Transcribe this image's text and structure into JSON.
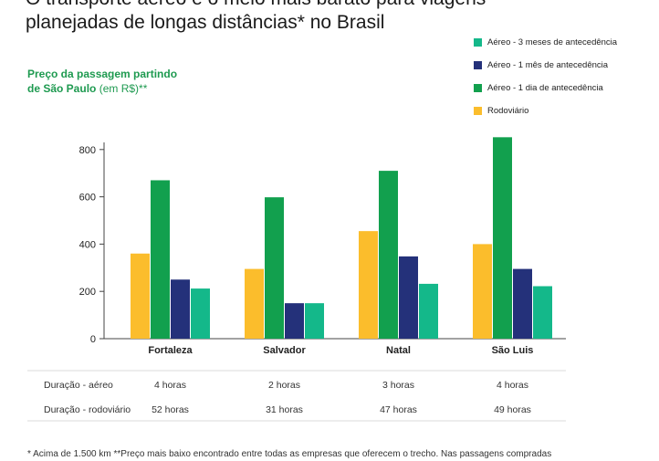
{
  "headline": {
    "line1": "O transporte aéreo é o meio mais barato para viagens",
    "line2": "planejadas de longas distâncias* no Brasil"
  },
  "subtitle": {
    "line1": "Preço da passagem partindo",
    "line2": "de São Paulo",
    "unit": " (em R$)**"
  },
  "legend": [
    {
      "label": "Aéreo - 3 meses de antecedência",
      "color": "#14b88a"
    },
    {
      "label": "Aéreo - 1 mês de antecedência",
      "color": "#24317a"
    },
    {
      "label": "Aéreo - 1 dia de antecedência",
      "color": "#12a04e"
    },
    {
      "label": "Rodoviário",
      "color": "#fbbd2c"
    }
  ],
  "chart_data": {
    "type": "bar",
    "title": "Preço da passagem partindo de São Paulo",
    "ylabel": "",
    "xlabel": "",
    "ylim": [
      0,
      850
    ],
    "yticks": [
      0,
      200,
      400,
      600,
      800
    ],
    "categories": [
      "Fortaleza",
      "Salvador",
      "Natal",
      "São Luis"
    ],
    "series": [
      {
        "name": "Rodoviário",
        "color": "#fbbd2c",
        "values": [
          360,
          295,
          455,
          400
        ]
      },
      {
        "name": "Aéreo - 1 dia de antecedência",
        "color": "#12a04e",
        "values": [
          670,
          598,
          710,
          852
        ]
      },
      {
        "name": "Aéreo - 1 mês de antecedência",
        "color": "#24317a",
        "values": [
          250,
          150,
          348,
          295
        ]
      },
      {
        "name": "Aéreo - 3 meses de antecedência",
        "color": "#14b88a",
        "values": [
          212,
          150,
          232,
          222
        ]
      }
    ],
    "grid": false,
    "legend_position": "top-right"
  },
  "table": {
    "rows": [
      {
        "label": "Duração - aéreo",
        "values": [
          "4 horas",
          "2 horas",
          "3 horas",
          "4 horas"
        ]
      },
      {
        "label": "Duração - rodoviário",
        "values": [
          "52 horas",
          "31 horas",
          "47 horas",
          "49 horas"
        ]
      }
    ]
  },
  "footnote": "* Acima de 1.500 km **Preço mais baixo encontrado entre todas as empresas que oferecem o trecho. Nas passagens compradas"
}
